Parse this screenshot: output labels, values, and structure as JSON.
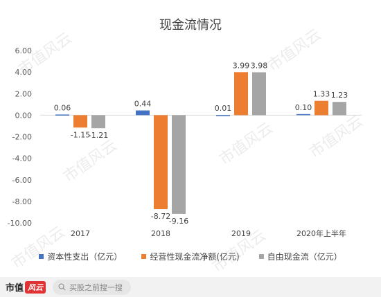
{
  "watermark_text": "市值风云",
  "footer": {
    "brand_text": "市值",
    "brand_mark": "风云",
    "search_placeholder": "买股之前搜一搜"
  },
  "chart_data": {
    "type": "bar",
    "title": "现金流情况",
    "categories": [
      "2017",
      "2018",
      "2019",
      "2020年上半年"
    ],
    "ylim": [
      -10,
      6
    ],
    "yticks": [
      "6.00",
      "4.00",
      "2.00",
      "0.00",
      "-2.00",
      "-4.00",
      "-6.00",
      "-8.00",
      "-10.00"
    ],
    "ytick_values": [
      6,
      4,
      2,
      0,
      -2,
      -4,
      -6,
      -8,
      -10
    ],
    "legend_position": "bottom",
    "grid": false,
    "series": [
      {
        "name": "资本性支出（亿元）",
        "color": "#4472c4",
        "values": [
          0.06,
          0.44,
          0.01,
          0.1
        ],
        "labels": [
          "0.06",
          "0.44",
          "0.01",
          "0.10"
        ]
      },
      {
        "name": "经营性现金流净额(亿元)",
        "color": "#ed7d31",
        "values": [
          -1.15,
          -8.72,
          3.99,
          1.33
        ],
        "labels": [
          "-1.15",
          "-8.72",
          "3.99",
          "1.33"
        ]
      },
      {
        "name": "自由现金流（亿元）",
        "color": "#a5a5a5",
        "values": [
          -1.21,
          -9.16,
          3.98,
          1.23
        ],
        "labels": [
          "-1.21",
          "-9.16",
          "3.98",
          "1.23"
        ]
      }
    ]
  }
}
